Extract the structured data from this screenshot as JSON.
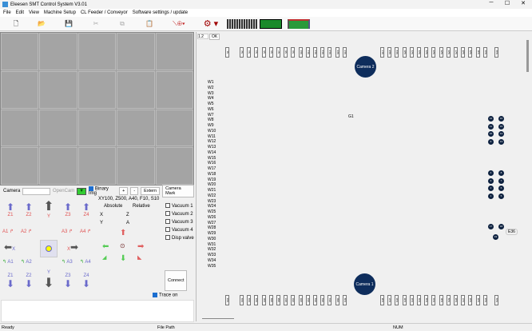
{
  "window": {
    "title": "Eleesen SMT Control System V3.01",
    "minimize": "─",
    "maximize": "☐",
    "close": "✕"
  },
  "menu": [
    "File",
    "Edit",
    "View",
    "Machine Setup",
    "CL Feeder / Conveyor",
    "Software settings / update"
  ],
  "camera_bar": {
    "camera_label": "Camera",
    "opencam": "OpenCam",
    "binary_img": "Binary Img",
    "plus": "+",
    "minus": "-",
    "extern": "Extern",
    "camera_mark": "Camera Mark"
  },
  "jog": {
    "speed_info": "XY100,  Z500,  A40,  F10,  S10",
    "absolute": "Absolute",
    "relative": "Relative",
    "x": "X",
    "y": "Y",
    "z": "Z",
    "a": "A",
    "z_up": [
      "Z1",
      "Z2",
      "Y",
      "Z3",
      "Z4"
    ],
    "a_ccw": [
      "A1",
      "A2",
      "A3",
      "A4"
    ],
    "x_minus": "X",
    "x_plus": "X",
    "a_cw": [
      "A1",
      "A2",
      "A3",
      "A4"
    ],
    "z_down": [
      "Z1",
      "Z2",
      "Y",
      "Z3",
      "Z4"
    ]
  },
  "vacuum": [
    "Vacuum 1",
    "Vacuum 2",
    "Vacuum 3",
    "Vacuum 4",
    "Disp valve"
  ],
  "connect": "Connect",
  "trace_on": "Trace on",
  "canvas": {
    "zoom_value": "1.2",
    "ok": "OK",
    "camera2": "Camera 2",
    "camera1": "Camera 1",
    "g1": "G1",
    "e36": "E36",
    "top_slots": [
      "S1",
      "S2",
      "S3",
      "S4",
      "S5",
      "S6",
      "S7",
      "S8",
      "S9",
      "S10",
      "S11",
      "S12",
      "S13",
      "S14",
      "S15",
      "S16",
      "S17",
      "S18",
      "S19",
      "S20",
      "S21",
      "S22",
      "S23",
      "S24",
      "S25",
      "S26",
      "S27",
      "S28",
      "S29",
      "S30",
      "S31",
      "S32"
    ],
    "bottom_slots": [
      "S64",
      "S63",
      "S62",
      "S61",
      "S60",
      "S59",
      "S58",
      "S57",
      "S56",
      "S55",
      "S54",
      "S53",
      "S52",
      "S51",
      "S50",
      "S49",
      "S48",
      "S47",
      "S46",
      "S45",
      "S44",
      "S43",
      "S42",
      "S41",
      "S40",
      "S39",
      "S38",
      "S37",
      "S36",
      "S35",
      "S34",
      "S33"
    ],
    "w_labels": [
      "W1",
      "W2",
      "W3",
      "W4",
      "W5",
      "W6",
      "W7",
      "W8",
      "W9",
      "W10",
      "W11",
      "W12",
      "W13",
      "W14",
      "W15",
      "W16",
      "W17",
      "W18",
      "W19",
      "W20",
      "W21",
      "W22",
      "W23",
      "W24",
      "W25",
      "W26",
      "W27",
      "W28",
      "W29",
      "W30",
      "W31",
      "W32",
      "W33",
      "W34",
      "W35"
    ],
    "nozzles": [
      "12",
      "16",
      "11",
      "15",
      "10",
      "14",
      "9",
      "13",
      "4",
      "8",
      "3",
      "7",
      "2",
      "6",
      "1",
      "5",
      "17",
      "18",
      "19"
    ]
  },
  "status": {
    "ready": "Ready",
    "file_path": "File Path",
    "num": "NUM"
  },
  "colors": {
    "camera_circle": "#0e2d5c",
    "accent": "#1c6ed0"
  }
}
